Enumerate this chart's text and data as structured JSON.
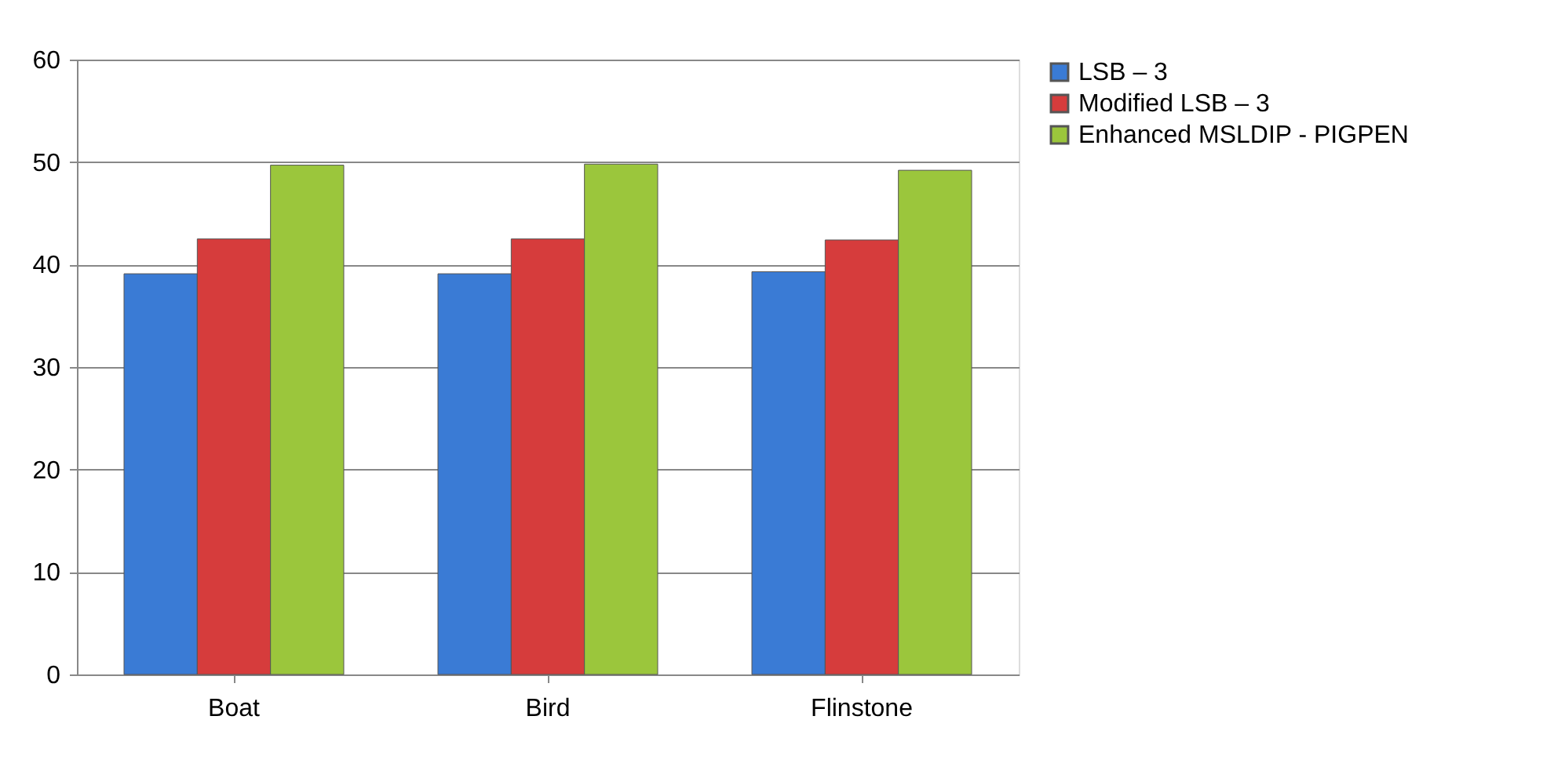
{
  "chart_data": {
    "type": "bar",
    "categories": [
      "Boat",
      "Bird",
      "Flinstone"
    ],
    "series": [
      {
        "name": "LSB – 3",
        "color": "#3a7bd5",
        "values": [
          39.1,
          39.1,
          39.3
        ]
      },
      {
        "name": "Modified LSB – 3",
        "color": "#d63c3c",
        "values": [
          42.5,
          42.5,
          42.4
        ]
      },
      {
        "name": "Enhanced MSLDIP - PIGPEN",
        "color": "#9bc63c",
        "values": [
          49.7,
          49.8,
          49.2
        ]
      }
    ],
    "ylim": [
      0,
      60
    ],
    "yticks": [
      0,
      10,
      20,
      30,
      40,
      50,
      60
    ],
    "grid": "y",
    "legend": "right"
  }
}
